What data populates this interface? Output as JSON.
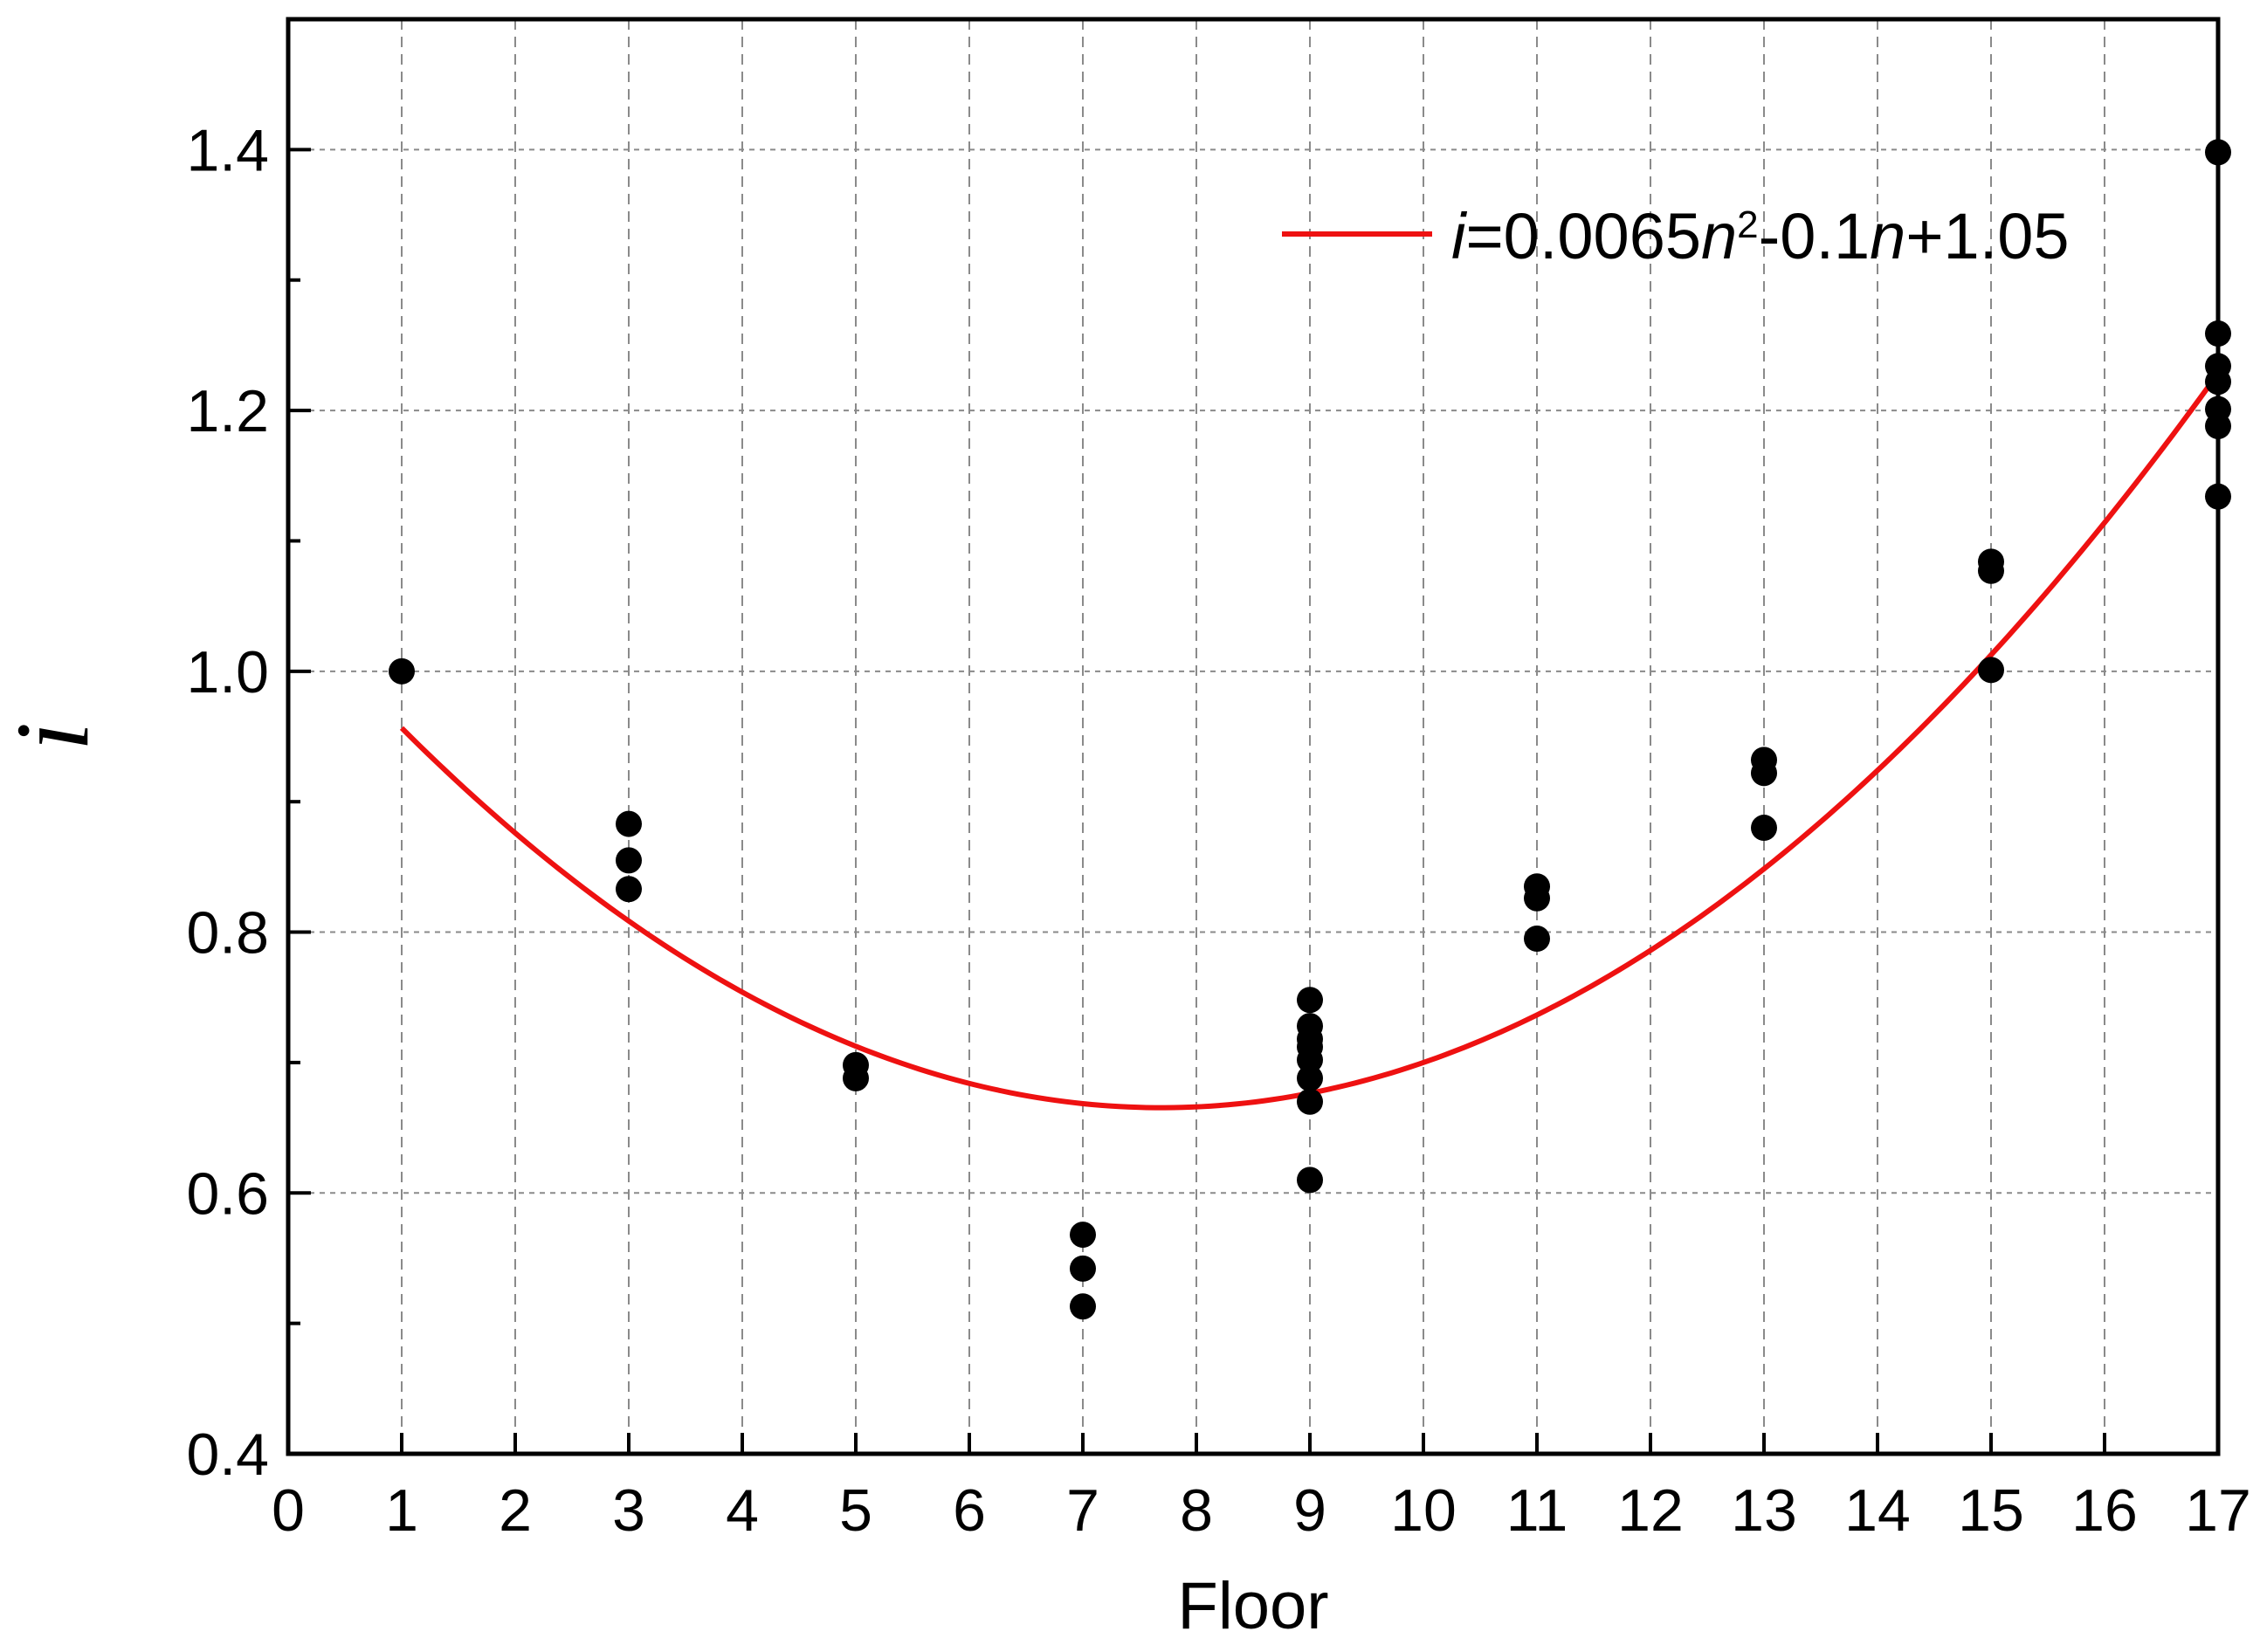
{
  "chart_data": {
    "type": "scatter",
    "title": "",
    "xlabel": "Floor",
    "ylabel": "i",
    "xlim": [
      0,
      17
    ],
    "ylim": [
      0.4,
      1.5
    ],
    "x_ticks": [
      "0",
      "1",
      "2",
      "3",
      "4",
      "5",
      "6",
      "7",
      "8",
      "9",
      "10",
      "11",
      "12",
      "13",
      "14",
      "15",
      "16",
      "17"
    ],
    "y_ticks": [
      "0.4",
      "0.6",
      "0.8",
      "1.0",
      "1.2",
      "1.4"
    ],
    "grid": true,
    "legend_position": "top-right",
    "points": [
      {
        "x": 1,
        "y": 1.0
      },
      {
        "x": 3,
        "y": 0.883
      },
      {
        "x": 3,
        "y": 0.855
      },
      {
        "x": 3,
        "y": 0.833
      },
      {
        "x": 5,
        "y": 0.698
      },
      {
        "x": 5,
        "y": 0.688
      },
      {
        "x": 7,
        "y": 0.568
      },
      {
        "x": 7,
        "y": 0.542
      },
      {
        "x": 7,
        "y": 0.513
      },
      {
        "x": 9,
        "y": 0.748
      },
      {
        "x": 9,
        "y": 0.728
      },
      {
        "x": 9,
        "y": 0.718
      },
      {
        "x": 9,
        "y": 0.712
      },
      {
        "x": 9,
        "y": 0.702
      },
      {
        "x": 9,
        "y": 0.688
      },
      {
        "x": 9,
        "y": 0.67
      },
      {
        "x": 9,
        "y": 0.61
      },
      {
        "x": 11,
        "y": 0.835
      },
      {
        "x": 11,
        "y": 0.826
      },
      {
        "x": 11,
        "y": 0.795
      },
      {
        "x": 13,
        "y": 0.932
      },
      {
        "x": 13,
        "y": 0.922
      },
      {
        "x": 13,
        "y": 0.88
      },
      {
        "x": 15,
        "y": 1.084
      },
      {
        "x": 15,
        "y": 1.077
      },
      {
        "x": 15,
        "y": 1.001
      },
      {
        "x": 17,
        "y": 1.398
      },
      {
        "x": 17,
        "y": 1.259
      },
      {
        "x": 17,
        "y": 1.234
      },
      {
        "x": 17,
        "y": 1.222
      },
      {
        "x": 17,
        "y": 1.201
      },
      {
        "x": 17,
        "y": 1.188
      },
      {
        "x": 17,
        "y": 1.134
      }
    ],
    "fit": {
      "name_parts": [
        {
          "text": "i",
          "italic": true
        },
        {
          "text": "=0.0065",
          "italic": false
        },
        {
          "text": "n",
          "italic": true
        },
        {
          "text": "2",
          "sup": true
        },
        {
          "text": "-0.1",
          "italic": false
        },
        {
          "text": "n",
          "italic": true
        },
        {
          "text": "+1.05",
          "italic": false
        }
      ],
      "coefficients": {
        "a": 0.0065,
        "b": -0.1,
        "c": 1.05
      },
      "x_range": [
        1,
        17
      ],
      "color": "#ee1111"
    },
    "point_color": "#000000"
  }
}
